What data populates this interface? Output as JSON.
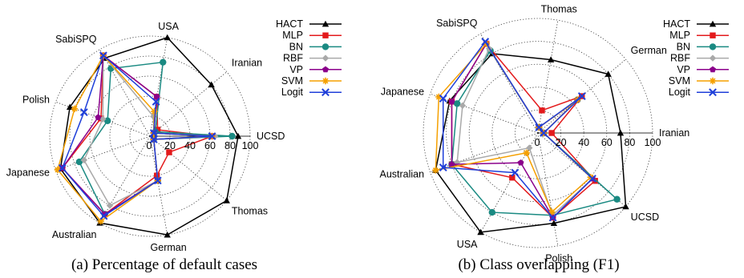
{
  "chart_data": [
    {
      "type": "radar",
      "caption": "(a) Percentage of default cases",
      "axes": [
        "UCSD",
        "Iranian",
        "USA",
        "SabiSPQ",
        "Polish",
        "Japanese",
        "Australian",
        "German",
        "Thomas"
      ],
      "rlim": [
        0,
        100
      ],
      "ticks": [
        0,
        20,
        40,
        60,
        80,
        100
      ],
      "grid": true,
      "legend_position": "top-right",
      "series": [
        {
          "name": "HACT",
          "color": "#000000",
          "marker": "triangle",
          "values": [
            88,
            80,
            100,
            90,
            85,
            95,
            100,
            100,
            100
          ]
        },
        {
          "name": "MLP",
          "color": "#e31a1c",
          "marker": "square",
          "values": [
            62,
            10,
            40,
            93,
            52,
            93,
            90,
            40,
            25
          ]
        },
        {
          "name": "BN",
          "color": "#1a8a82",
          "marker": "circle",
          "values": [
            82,
            7,
            75,
            78,
            45,
            75,
            90,
            45,
            5
          ]
        },
        {
          "name": "RBF",
          "color": "#a9a9a9",
          "marker": "diamond",
          "values": [
            65,
            5,
            20,
            93,
            50,
            70,
            80,
            45,
            5
          ]
        },
        {
          "name": "VP",
          "color": "#8b008b",
          "marker": "pentagon",
          "values": [
            62,
            5,
            40,
            93,
            55,
            93,
            90,
            45,
            5
          ]
        },
        {
          "name": "SVM",
          "color": "#f5a000",
          "marker": "asterisk",
          "values": [
            62,
            5,
            25,
            93,
            80,
            98,
            98,
            45,
            5
          ]
        },
        {
          "name": "Logit",
          "color": "#1f3fd9",
          "marker": "x",
          "values": [
            62,
            5,
            35,
            93,
            70,
            93,
            92,
            45,
            5
          ]
        }
      ]
    },
    {
      "type": "radar",
      "caption": "(b) Class overlapping (F1)",
      "axes": [
        "Iranian",
        "German",
        "Thomas",
        "SabiSPQ",
        "Japanese",
        "Australian",
        "USA",
        "Polish",
        "UCSD"
      ],
      "rlim": [
        0,
        100
      ],
      "ticks": [
        0,
        20,
        40,
        60,
        80,
        100
      ],
      "grid": true,
      "legend_position": "top-right",
      "series": [
        {
          "name": "HACT",
          "color": "#000000",
          "marker": "triangle",
          "values": [
            72,
            80,
            65,
            80,
            82,
            95,
            100,
            80,
            100
          ]
        },
        {
          "name": "MLP",
          "color": "#e31a1c",
          "marker": "square",
          "values": [
            12,
            50,
            20,
            90,
            80,
            80,
            45,
            75,
            65
          ]
        },
        {
          "name": "BN",
          "color": "#1a8a82",
          "marker": "circle",
          "values": [
            5,
            45,
            5,
            83,
            75,
            80,
            80,
            73,
            90
          ]
        },
        {
          "name": "RBF",
          "color": "#a9a9a9",
          "marker": "diamond",
          "values": [
            5,
            45,
            5,
            85,
            70,
            75,
            15,
            73,
            62
          ]
        },
        {
          "name": "VP",
          "color": "#8b008b",
          "marker": "pentagon",
          "values": [
            5,
            45,
            5,
            90,
            80,
            80,
            30,
            75,
            62
          ]
        },
        {
          "name": "SVM",
          "color": "#f5a000",
          "marker": "asterisk",
          "values": [
            5,
            45,
            5,
            90,
            92,
            95,
            20,
            70,
            60
          ]
        },
        {
          "name": "Logit",
          "color": "#1f3fd9",
          "marker": "x",
          "values": [
            5,
            50,
            5,
            92,
            88,
            88,
            40,
            75,
            62
          ]
        }
      ]
    }
  ]
}
